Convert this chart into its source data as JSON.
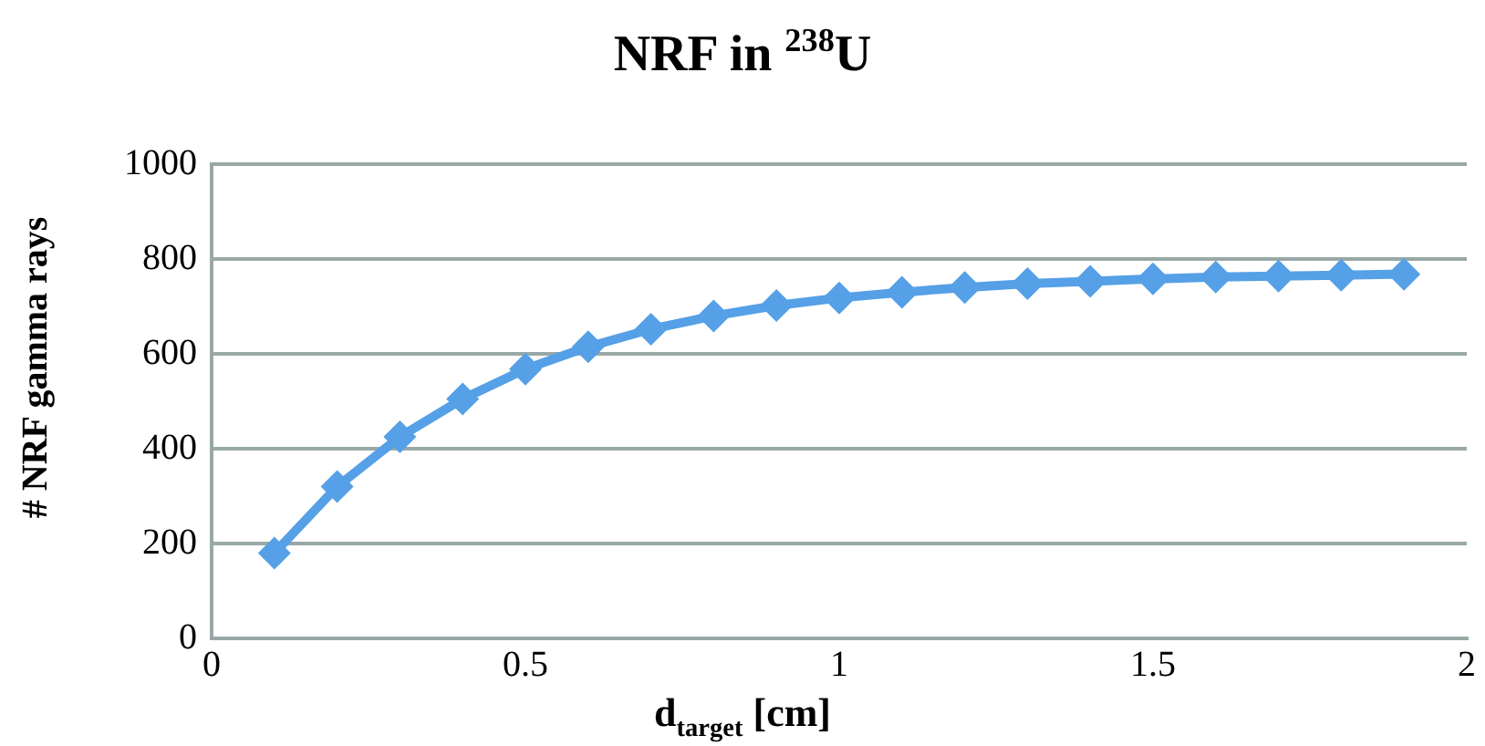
{
  "chart_data": {
    "type": "line",
    "title": "NRF in $^{238}$U",
    "xlabel": "d$_{target}$ [cm]",
    "ylabel": "# NRF gamma rays",
    "x": [
      0.1,
      0.2,
      0.3,
      0.4,
      0.5,
      0.6,
      0.7,
      0.8,
      0.9,
      1.0,
      1.1,
      1.2,
      1.3,
      1.4,
      1.5,
      1.6,
      1.7,
      1.8,
      1.9
    ],
    "series": [
      {
        "color": "#55a0e6",
        "values": [
          180,
          320,
          425,
          505,
          568,
          615,
          652,
          680,
          702,
          718,
          730,
          740,
          748,
          753,
          758,
          762,
          764,
          766,
          768
        ]
      }
    ],
    "xlim": [
      0,
      2
    ],
    "xticks": [
      0,
      0.5,
      1,
      1.5,
      2
    ],
    "ylim": [
      0,
      1000
    ],
    "yticks": [
      0,
      200,
      400,
      600,
      800,
      1000
    ],
    "grid": "y",
    "legend": false,
    "marker": "diamond",
    "line_style": "solid"
  }
}
